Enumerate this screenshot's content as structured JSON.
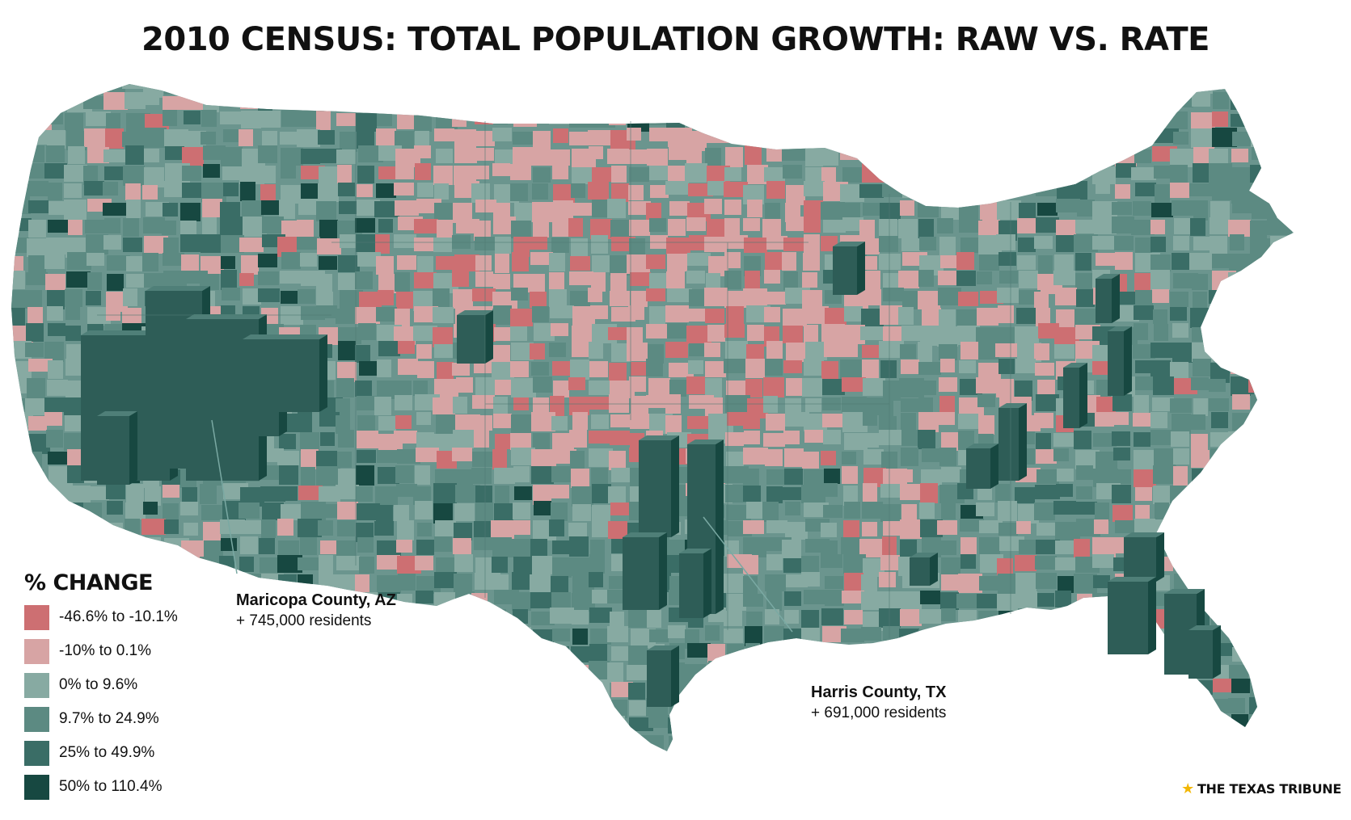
{
  "title": "2010 CENSUS: TOTAL POPULATION GROWTH: RAW VS. RATE",
  "legend": {
    "title": "% CHANGE",
    "items": [
      {
        "label": "-46.6% to -10.1%",
        "color": "#cd6f72"
      },
      {
        "label": "-10% to 0.1%",
        "color": "#d7a4a4"
      },
      {
        "label": "0% to 9.6%",
        "color": "#87aaa2"
      },
      {
        "label": "9.7% to 24.9%",
        "color": "#5c8a82"
      },
      {
        "label": "25% to 49.9%",
        "color": "#3a6d66"
      },
      {
        "label": "50% to 110.4%",
        "color": "#174841"
      }
    ]
  },
  "annotations": {
    "maricopa": {
      "name": "Maricopa County, AZ",
      "value": "+ 745,000 residents"
    },
    "harris": {
      "name": "Harris County, TX",
      "value": "+ 691,000 residents"
    }
  },
  "credit": "THE TEXAS TRIBUNE",
  "colors": {
    "land": "#6b958e",
    "border": "#4e7a73",
    "background": "#ffffff"
  }
}
